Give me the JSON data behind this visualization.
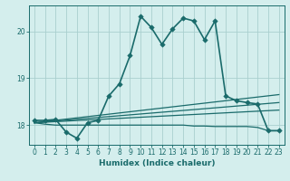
{
  "xlabel": "Humidex (Indice chaleur)",
  "bg_color": "#d4eeed",
  "grid_color": "#aacfcf",
  "line_color": "#1a6b6b",
  "x_ticks": [
    0,
    1,
    2,
    3,
    4,
    5,
    6,
    7,
    8,
    9,
    10,
    11,
    12,
    13,
    14,
    15,
    16,
    17,
    18,
    19,
    20,
    21,
    22,
    23
  ],
  "y_ticks": [
    18,
    19,
    20
  ],
  "ylim": [
    17.58,
    20.55
  ],
  "xlim": [
    -0.5,
    23.5
  ],
  "series": [
    {
      "x": [
        0,
        1,
        2,
        3,
        4,
        5,
        6,
        7,
        8,
        9,
        10,
        11,
        12,
        13,
        14,
        15,
        16,
        17,
        18,
        19,
        20,
        21,
        22,
        23
      ],
      "y": [
        18.1,
        18.1,
        18.12,
        17.85,
        17.72,
        18.05,
        18.1,
        18.62,
        18.88,
        19.48,
        20.32,
        20.08,
        19.72,
        20.05,
        20.28,
        20.22,
        19.82,
        20.22,
        18.62,
        18.52,
        18.48,
        18.45,
        17.88,
        17.88
      ],
      "marker": "D",
      "linewidth": 1.2,
      "markersize": 2.8
    },
    {
      "x": [
        0,
        1,
        2,
        3,
        4,
        5,
        6,
        7,
        8,
        9,
        10,
        11,
        12,
        13,
        14,
        15,
        16,
        17,
        18,
        19,
        20,
        21,
        22,
        23
      ],
      "y": [
        18.05,
        18.02,
        18.0,
        18.0,
        18.0,
        18.0,
        18.0,
        18.0,
        18.0,
        18.0,
        18.0,
        18.0,
        18.0,
        18.0,
        18.0,
        17.98,
        17.98,
        17.97,
        17.97,
        17.97,
        17.97,
        17.95,
        17.88,
        17.88
      ],
      "marker": null,
      "linewidth": 0.9,
      "markersize": 0
    },
    {
      "x": [
        0,
        23
      ],
      "y": [
        18.05,
        18.65
      ],
      "marker": null,
      "linewidth": 0.9,
      "markersize": 0
    },
    {
      "x": [
        0,
        23
      ],
      "y": [
        18.05,
        18.48
      ],
      "marker": null,
      "linewidth": 0.9,
      "markersize": 0
    },
    {
      "x": [
        0,
        23
      ],
      "y": [
        18.05,
        18.32
      ],
      "marker": null,
      "linewidth": 0.9,
      "markersize": 0
    }
  ],
  "tick_fontsize": 5.5,
  "xlabel_fontsize": 6.5
}
